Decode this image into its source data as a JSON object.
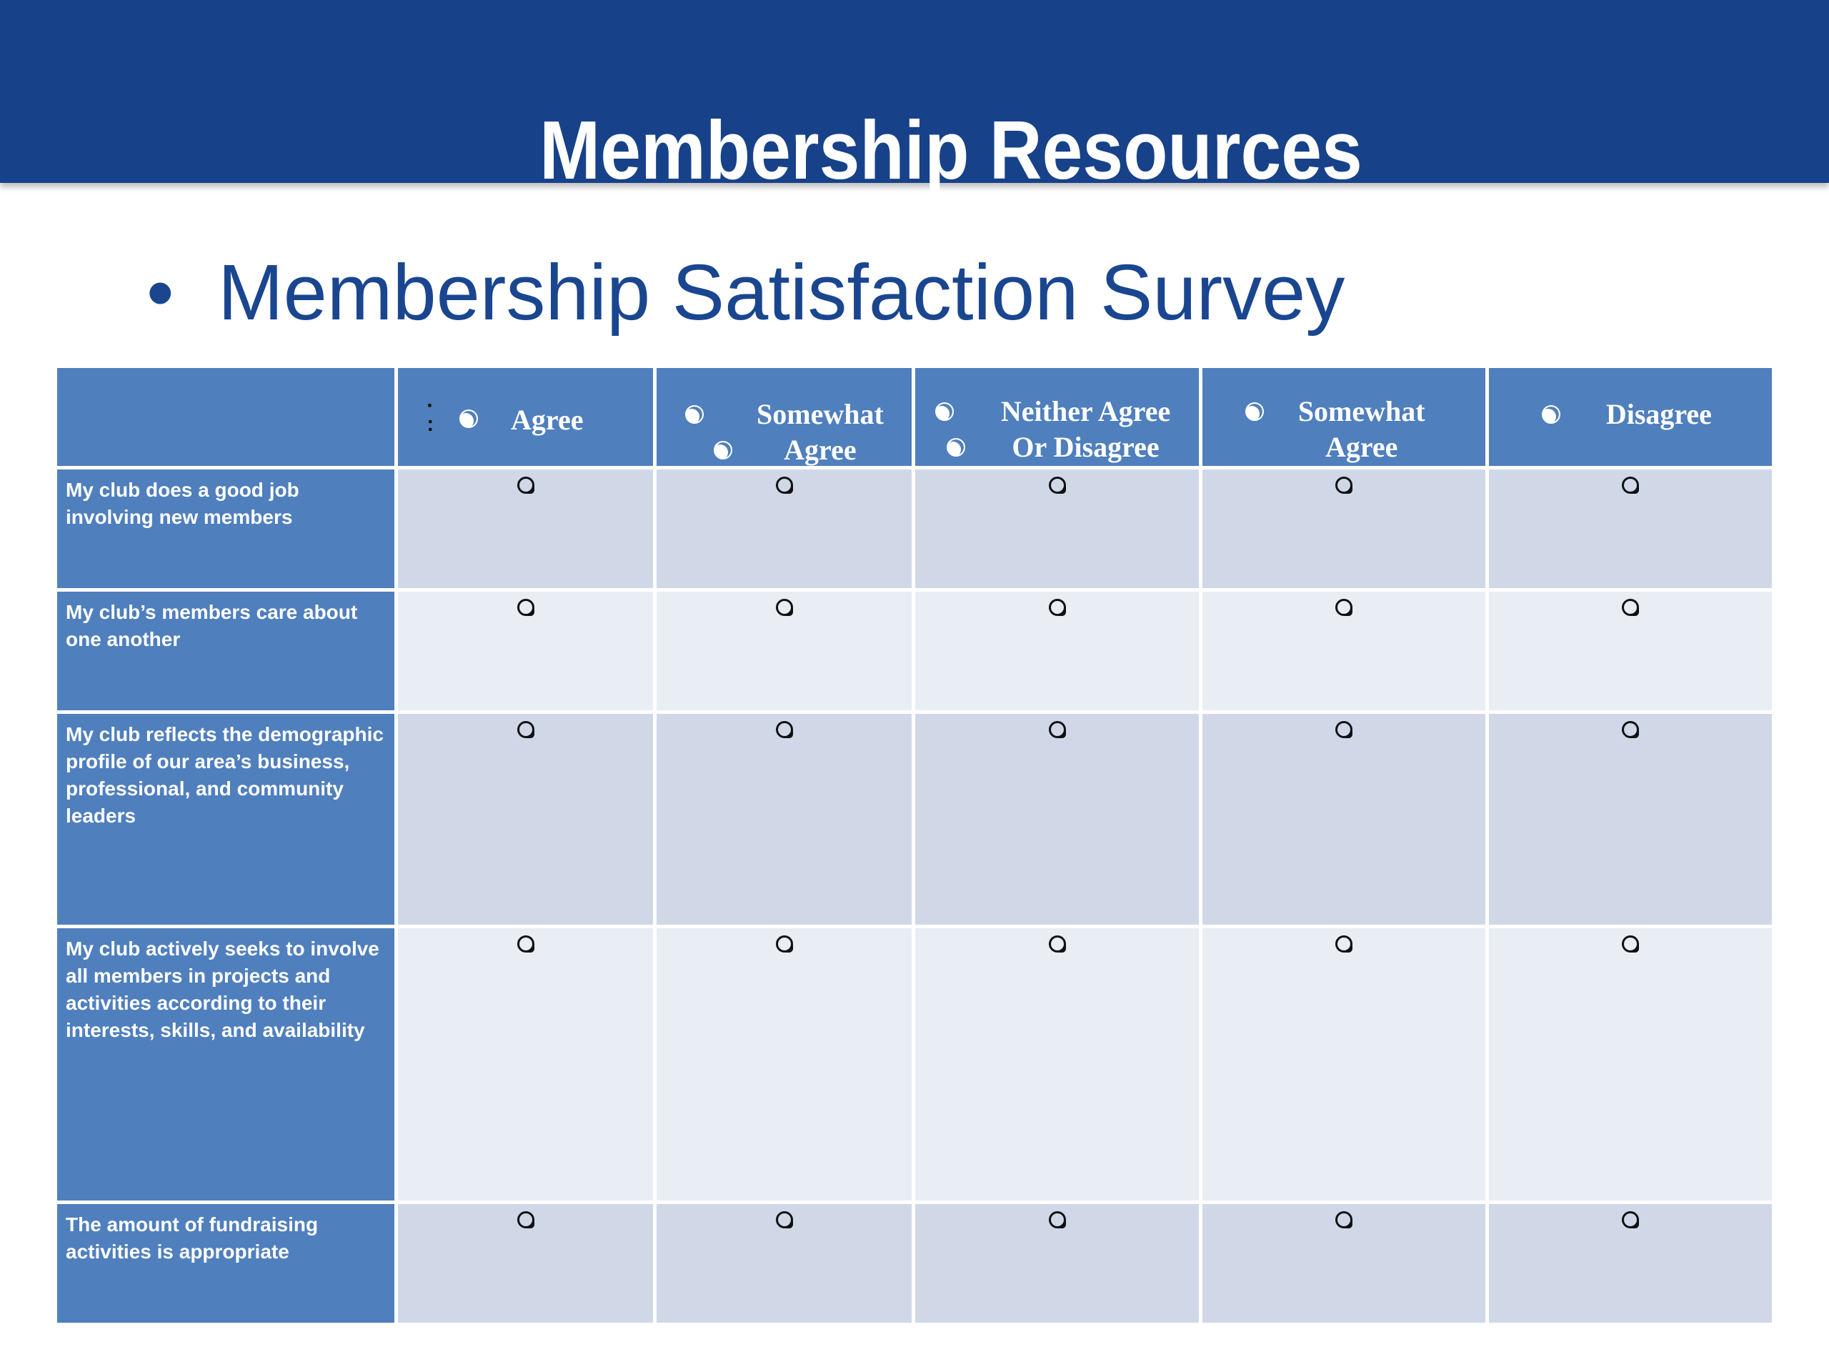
{
  "slide": {
    "title": "Membership Resources",
    "bullet": "Membership Satisfaction Survey",
    "colors": {
      "header_band": "#17428a",
      "header_cells": "#4f7fbd",
      "row_band_dark": "#d0d8e8",
      "row_band_light": "#e9edf4",
      "bullet_text": "#1a4690"
    }
  },
  "survey": {
    "columns": [
      {
        "label": "Agree"
      },
      {
        "label": "Somewhat\nAgree"
      },
      {
        "label": "Neither Agree\nOr Disagree"
      },
      {
        "label": "Somewhat\nAgree"
      },
      {
        "label": "Disagree"
      }
    ],
    "rows": [
      {
        "question": "My club does a good job involving new members"
      },
      {
        "question": "My club’s members care about one another"
      },
      {
        "question": "My club reflects the demographic profile of our area’s business, professional, and community leaders"
      },
      {
        "question": "My club actively seeks to involve all members in projects and activities according to their interests, skills, and availability"
      },
      {
        "question": "The amount of fundraising activities is appropriate"
      }
    ]
  }
}
